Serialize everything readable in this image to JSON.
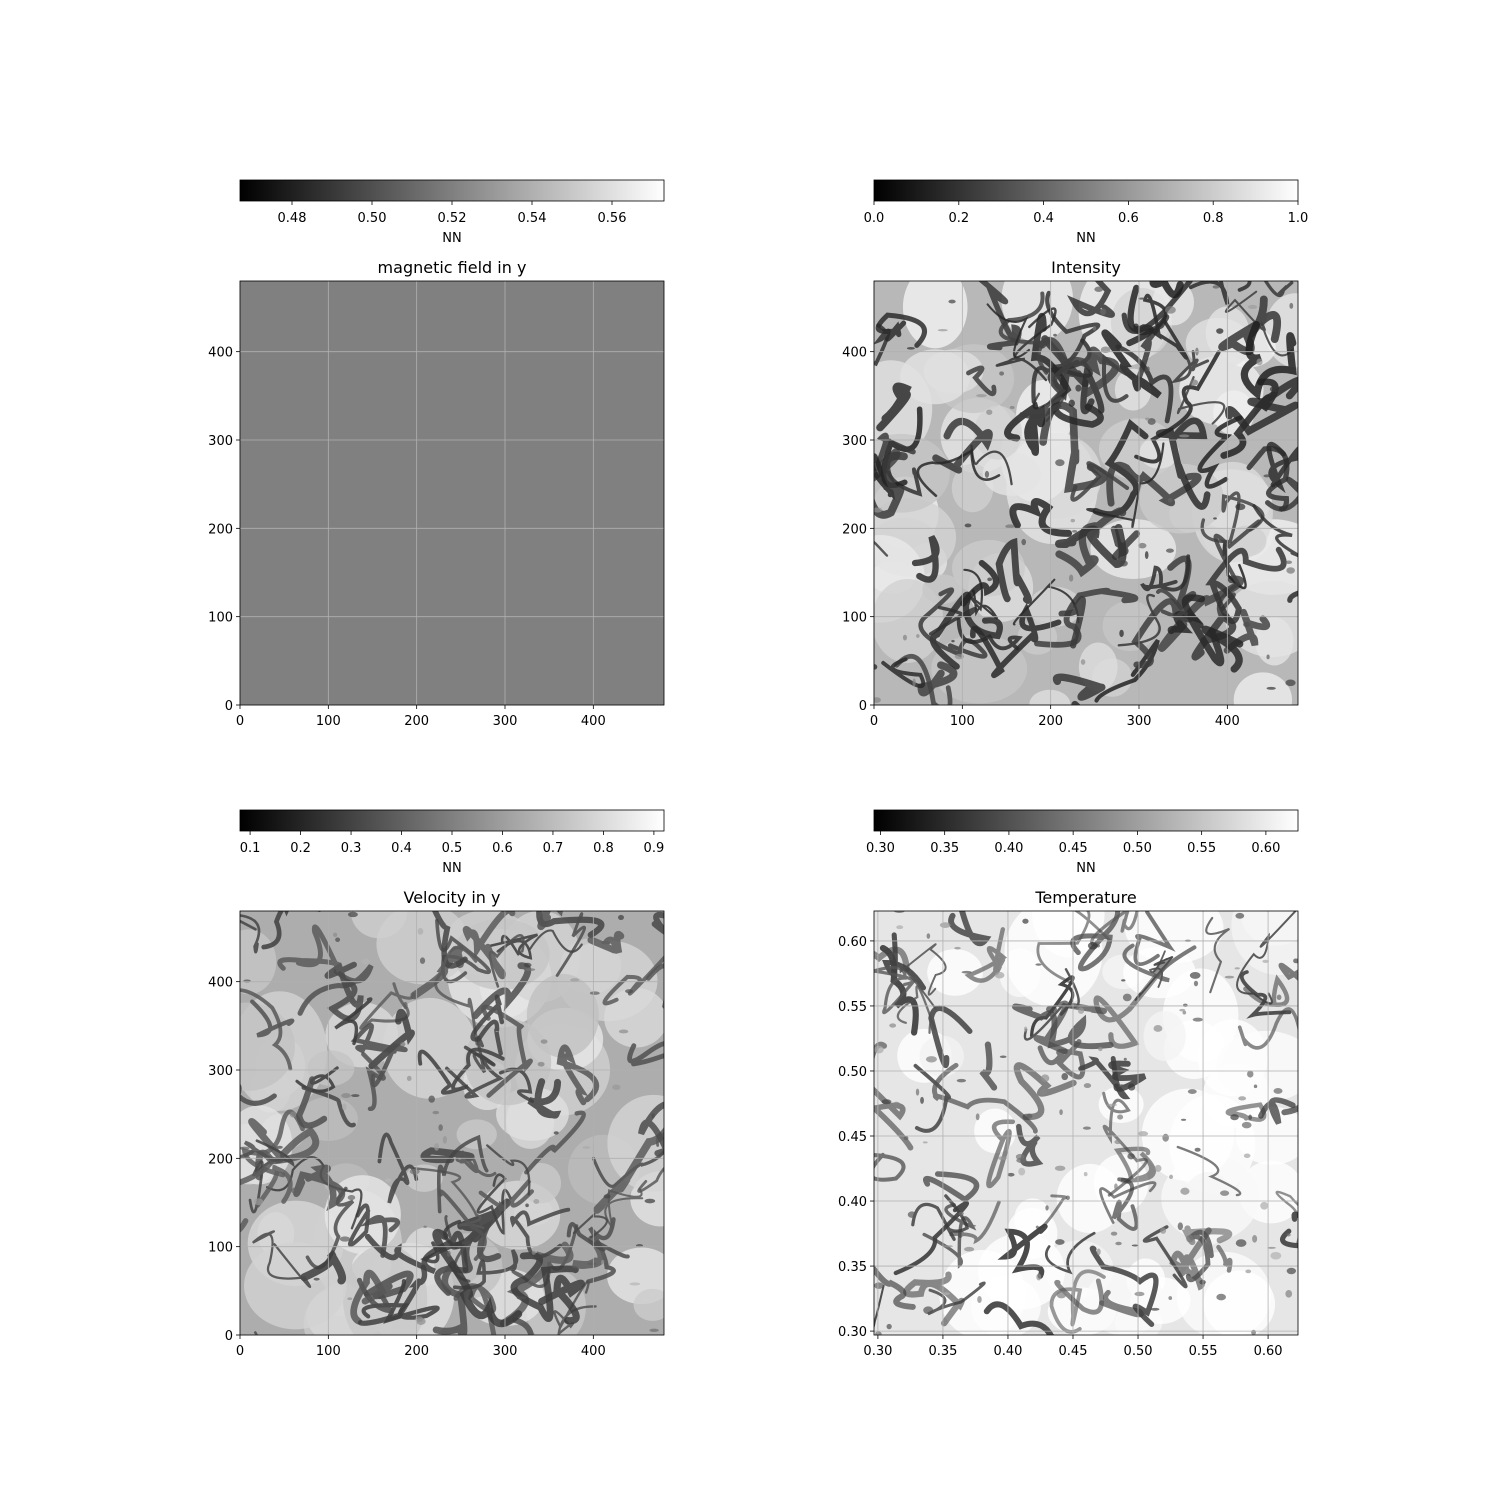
{
  "chart_data": [
    {
      "type": "heatmap",
      "title": "magnetic field in y",
      "colormap": "gray",
      "uniform_value": 0.52,
      "xlim": [
        0,
        480
      ],
      "ylim": [
        0,
        480
      ],
      "xticks": [
        0,
        100,
        200,
        300,
        400
      ],
      "yticks": [
        0,
        100,
        200,
        300,
        400
      ],
      "xticklabels": [
        "0",
        "100",
        "200",
        "300",
        "400"
      ],
      "yticklabels": [
        "0",
        "100",
        "200",
        "300",
        "400"
      ],
      "grid": true,
      "colorbar": {
        "label": "NN",
        "placement": "top",
        "range": [
          0.467,
          0.573
        ],
        "ticks": [
          0.48,
          0.5,
          0.52,
          0.54,
          0.56
        ],
        "ticklabels": [
          "0.48",
          "0.50",
          "0.52",
          "0.54",
          "0.56"
        ]
      },
      "texture": {
        "seed": 11,
        "style": "uniform"
      }
    },
    {
      "type": "heatmap",
      "title": "Intensity",
      "colormap": "gray",
      "xlim": [
        0,
        480
      ],
      "ylim": [
        0,
        480
      ],
      "xticks": [
        0,
        100,
        200,
        300,
        400
      ],
      "yticks": [
        0,
        100,
        200,
        300,
        400
      ],
      "xticklabels": [
        "0",
        "100",
        "200",
        "300",
        "400"
      ],
      "yticklabels": [
        "0",
        "100",
        "200",
        "300",
        "400"
      ],
      "grid": true,
      "colorbar": {
        "label": "NN",
        "placement": "top",
        "range": [
          0.0,
          1.0
        ],
        "ticks": [
          0.0,
          0.2,
          0.4,
          0.6,
          0.8,
          1.0
        ],
        "ticklabels": [
          "0.0",
          "0.2",
          "0.4",
          "0.6",
          "0.8",
          "1.0"
        ]
      },
      "texture": {
        "seed": 23,
        "style": "granulation",
        "background": 0.72,
        "lane": 0.12
      }
    },
    {
      "type": "heatmap",
      "title": "Velocity in y",
      "colormap": "gray",
      "xlim": [
        0,
        480
      ],
      "ylim": [
        0,
        480
      ],
      "xticks": [
        0,
        100,
        200,
        300,
        400
      ],
      "yticks": [
        0,
        100,
        200,
        300,
        400
      ],
      "xticklabels": [
        "0",
        "100",
        "200",
        "300",
        "400"
      ],
      "yticklabels": [
        "0",
        "100",
        "200",
        "300",
        "400"
      ],
      "grid": true,
      "colorbar": {
        "label": "NN",
        "placement": "top",
        "range": [
          0.08,
          0.92
        ],
        "ticks": [
          0.1,
          0.2,
          0.3,
          0.4,
          0.5,
          0.6,
          0.7,
          0.8,
          0.9
        ],
        "ticklabels": [
          "0.1",
          "0.2",
          "0.3",
          "0.4",
          "0.5",
          "0.6",
          "0.7",
          "0.8",
          "0.9"
        ]
      },
      "texture": {
        "seed": 37,
        "style": "granulation",
        "background": 0.68,
        "lane": 0.22
      }
    },
    {
      "type": "heatmap",
      "title": "Temperature",
      "colormap": "gray",
      "xlim": [
        0.297,
        0.623
      ],
      "ylim": [
        0.297,
        0.623
      ],
      "xticks": [
        0.3,
        0.35,
        0.4,
        0.45,
        0.5,
        0.55,
        0.6
      ],
      "yticks": [
        0.3,
        0.35,
        0.4,
        0.45,
        0.5,
        0.55,
        0.6
      ],
      "xticklabels": [
        "0.30",
        "0.35",
        "0.40",
        "0.45",
        "0.50",
        "0.55",
        "0.60"
      ],
      "yticklabels": [
        "0.30",
        "0.35",
        "0.40",
        "0.45",
        "0.50",
        "0.55",
        "0.60"
      ],
      "grid": true,
      "colorbar": {
        "label": "NN",
        "placement": "top",
        "range": [
          0.295,
          0.625
        ],
        "ticks": [
          0.3,
          0.35,
          0.4,
          0.45,
          0.5,
          0.55,
          0.6
        ],
        "ticklabels": [
          "0.30",
          "0.35",
          "0.40",
          "0.45",
          "0.50",
          "0.55",
          "0.60"
        ]
      },
      "texture": {
        "seed": 51,
        "style": "sparse",
        "background": 0.9,
        "lane": 0.2
      }
    }
  ]
}
